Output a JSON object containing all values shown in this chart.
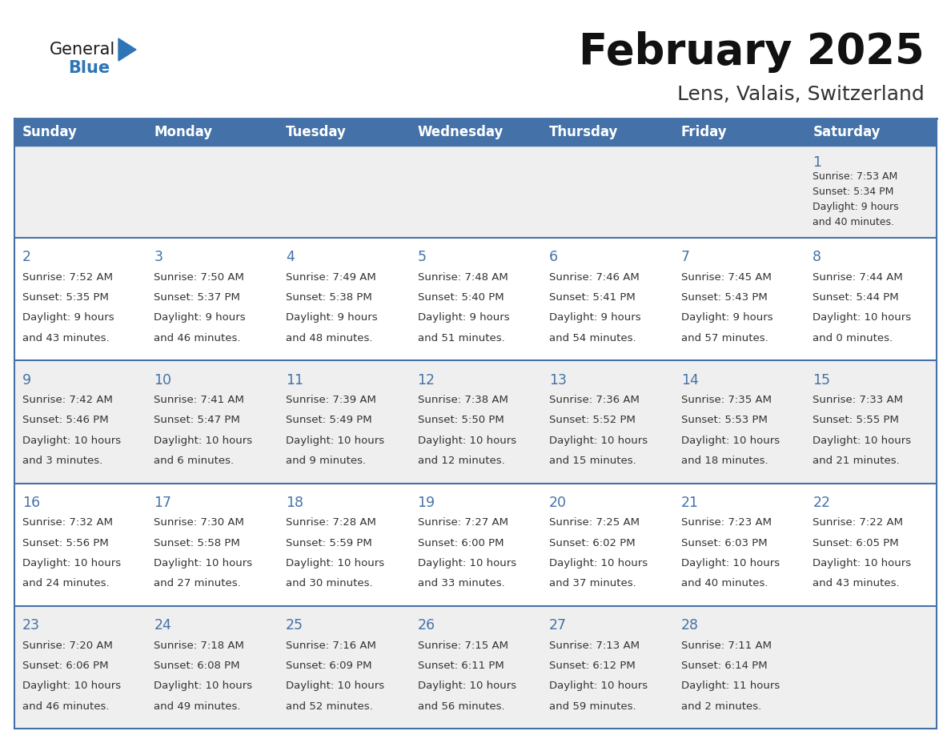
{
  "title": "February 2025",
  "subtitle": "Lens, Valais, Switzerland",
  "days_of_week": [
    "Sunday",
    "Monday",
    "Tuesday",
    "Wednesday",
    "Thursday",
    "Friday",
    "Saturday"
  ],
  "header_bg": "#4472a8",
  "header_text": "#ffffff",
  "row_bg_even": "#efefef",
  "row_bg_odd": "#ffffff",
  "cell_text_color": "#333333",
  "date_color": "#4472a8",
  "border_color": "#4472a8",
  "logo_general_color": "#1a1a1a",
  "logo_blue_color": "#2e75b6",
  "days": [
    {
      "date": 1,
      "col": 6,
      "row": 0,
      "sunrise": "7:53 AM",
      "sunset": "5:34 PM",
      "daylight": "9 hours and 40 minutes."
    },
    {
      "date": 2,
      "col": 0,
      "row": 1,
      "sunrise": "7:52 AM",
      "sunset": "5:35 PM",
      "daylight": "9 hours and 43 minutes."
    },
    {
      "date": 3,
      "col": 1,
      "row": 1,
      "sunrise": "7:50 AM",
      "sunset": "5:37 PM",
      "daylight": "9 hours and 46 minutes."
    },
    {
      "date": 4,
      "col": 2,
      "row": 1,
      "sunrise": "7:49 AM",
      "sunset": "5:38 PM",
      "daylight": "9 hours and 48 minutes."
    },
    {
      "date": 5,
      "col": 3,
      "row": 1,
      "sunrise": "7:48 AM",
      "sunset": "5:40 PM",
      "daylight": "9 hours and 51 minutes."
    },
    {
      "date": 6,
      "col": 4,
      "row": 1,
      "sunrise": "7:46 AM",
      "sunset": "5:41 PM",
      "daylight": "9 hours and 54 minutes."
    },
    {
      "date": 7,
      "col": 5,
      "row": 1,
      "sunrise": "7:45 AM",
      "sunset": "5:43 PM",
      "daylight": "9 hours and 57 minutes."
    },
    {
      "date": 8,
      "col": 6,
      "row": 1,
      "sunrise": "7:44 AM",
      "sunset": "5:44 PM",
      "daylight": "10 hours and 0 minutes."
    },
    {
      "date": 9,
      "col": 0,
      "row": 2,
      "sunrise": "7:42 AM",
      "sunset": "5:46 PM",
      "daylight": "10 hours and 3 minutes."
    },
    {
      "date": 10,
      "col": 1,
      "row": 2,
      "sunrise": "7:41 AM",
      "sunset": "5:47 PM",
      "daylight": "10 hours and 6 minutes."
    },
    {
      "date": 11,
      "col": 2,
      "row": 2,
      "sunrise": "7:39 AM",
      "sunset": "5:49 PM",
      "daylight": "10 hours and 9 minutes."
    },
    {
      "date": 12,
      "col": 3,
      "row": 2,
      "sunrise": "7:38 AM",
      "sunset": "5:50 PM",
      "daylight": "10 hours and 12 minutes."
    },
    {
      "date": 13,
      "col": 4,
      "row": 2,
      "sunrise": "7:36 AM",
      "sunset": "5:52 PM",
      "daylight": "10 hours and 15 minutes."
    },
    {
      "date": 14,
      "col": 5,
      "row": 2,
      "sunrise": "7:35 AM",
      "sunset": "5:53 PM",
      "daylight": "10 hours and 18 minutes."
    },
    {
      "date": 15,
      "col": 6,
      "row": 2,
      "sunrise": "7:33 AM",
      "sunset": "5:55 PM",
      "daylight": "10 hours and 21 minutes."
    },
    {
      "date": 16,
      "col": 0,
      "row": 3,
      "sunrise": "7:32 AM",
      "sunset": "5:56 PM",
      "daylight": "10 hours and 24 minutes."
    },
    {
      "date": 17,
      "col": 1,
      "row": 3,
      "sunrise": "7:30 AM",
      "sunset": "5:58 PM",
      "daylight": "10 hours and 27 minutes."
    },
    {
      "date": 18,
      "col": 2,
      "row": 3,
      "sunrise": "7:28 AM",
      "sunset": "5:59 PM",
      "daylight": "10 hours and 30 minutes."
    },
    {
      "date": 19,
      "col": 3,
      "row": 3,
      "sunrise": "7:27 AM",
      "sunset": "6:00 PM",
      "daylight": "10 hours and 33 minutes."
    },
    {
      "date": 20,
      "col": 4,
      "row": 3,
      "sunrise": "7:25 AM",
      "sunset": "6:02 PM",
      "daylight": "10 hours and 37 minutes."
    },
    {
      "date": 21,
      "col": 5,
      "row": 3,
      "sunrise": "7:23 AM",
      "sunset": "6:03 PM",
      "daylight": "10 hours and 40 minutes."
    },
    {
      "date": 22,
      "col": 6,
      "row": 3,
      "sunrise": "7:22 AM",
      "sunset": "6:05 PM",
      "daylight": "10 hours and 43 minutes."
    },
    {
      "date": 23,
      "col": 0,
      "row": 4,
      "sunrise": "7:20 AM",
      "sunset": "6:06 PM",
      "daylight": "10 hours and 46 minutes."
    },
    {
      "date": 24,
      "col": 1,
      "row": 4,
      "sunrise": "7:18 AM",
      "sunset": "6:08 PM",
      "daylight": "10 hours and 49 minutes."
    },
    {
      "date": 25,
      "col": 2,
      "row": 4,
      "sunrise": "7:16 AM",
      "sunset": "6:09 PM",
      "daylight": "10 hours and 52 minutes."
    },
    {
      "date": 26,
      "col": 3,
      "row": 4,
      "sunrise": "7:15 AM",
      "sunset": "6:11 PM",
      "daylight": "10 hours and 56 minutes."
    },
    {
      "date": 27,
      "col": 4,
      "row": 4,
      "sunrise": "7:13 AM",
      "sunset": "6:12 PM",
      "daylight": "10 hours and 59 minutes."
    },
    {
      "date": 28,
      "col": 5,
      "row": 4,
      "sunrise": "7:11 AM",
      "sunset": "6:14 PM",
      "daylight": "11 hours and 2 minutes."
    }
  ]
}
